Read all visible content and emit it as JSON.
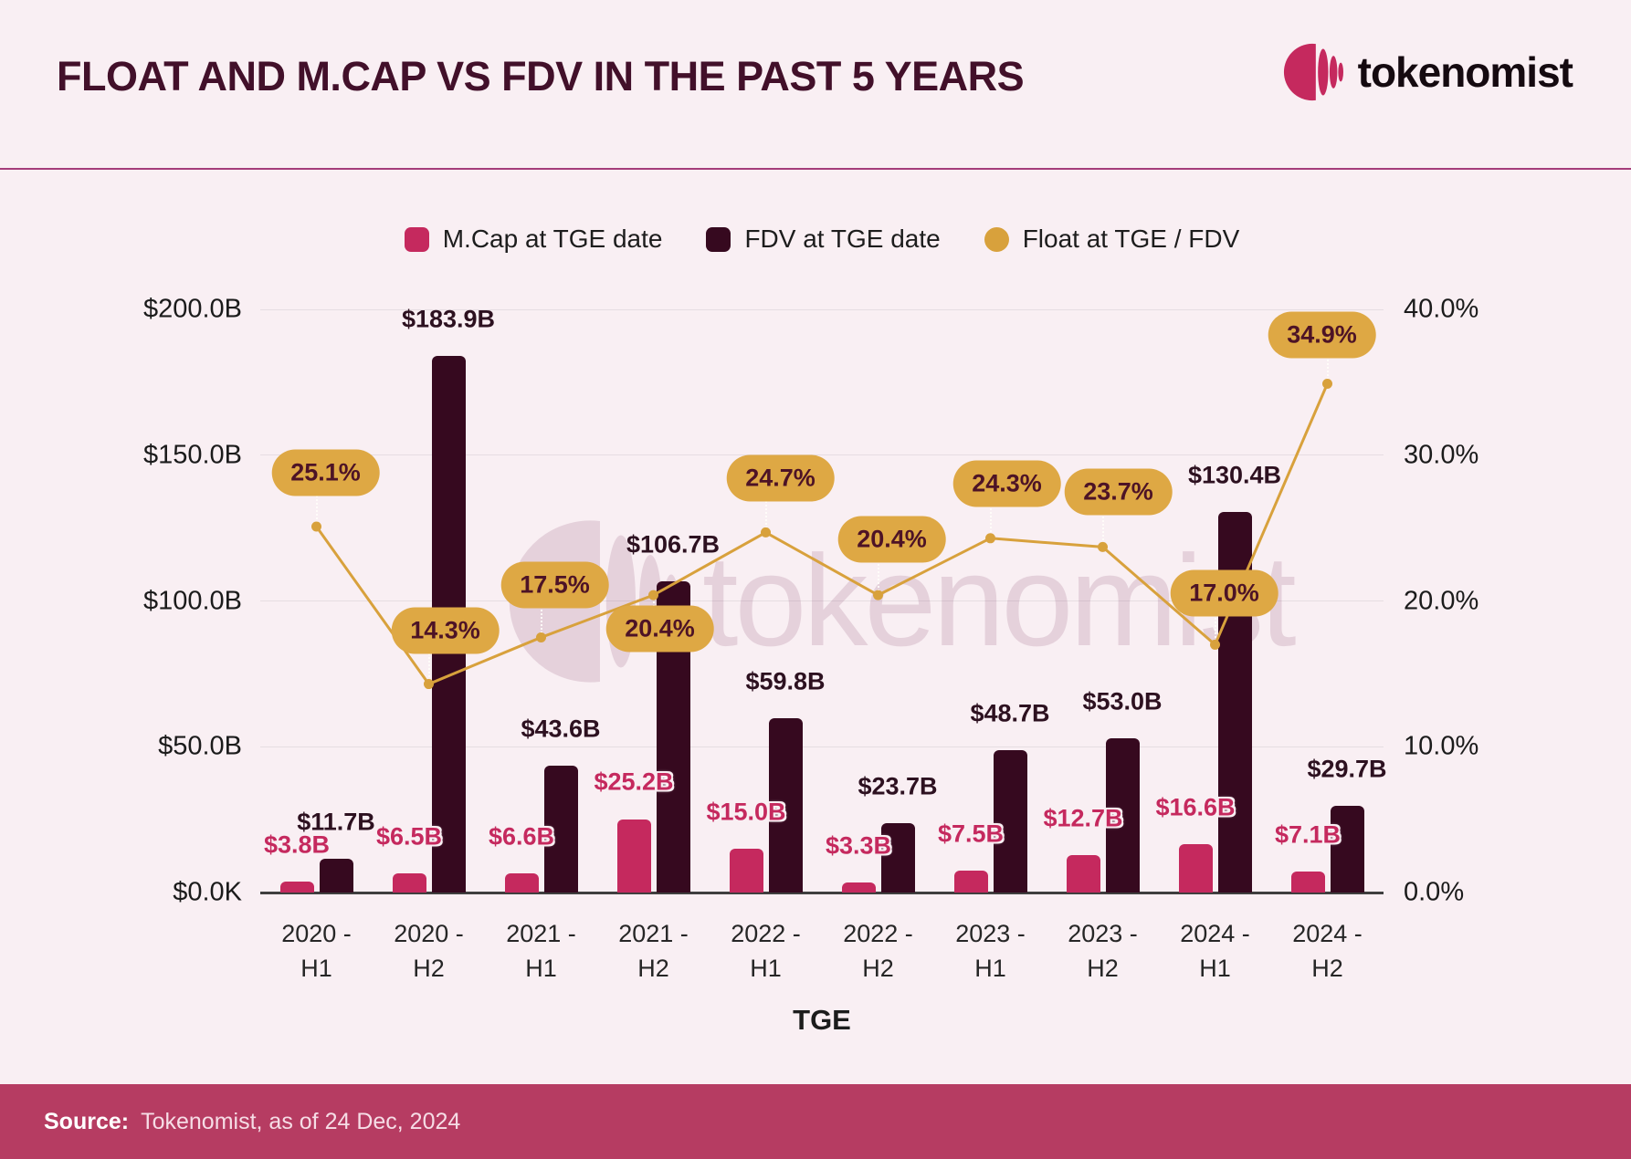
{
  "header": {
    "title": "FLOAT AND M.CAP VS FDV IN THE PAST 5 YEARS",
    "brand": "tokenomist"
  },
  "watermark": {
    "text": "tokenomist"
  },
  "source": {
    "label": "Source:",
    "text": "Tokenomist, as of 24 Dec, 2024"
  },
  "colors": {
    "background": "#f9eff3",
    "title": "#42102a",
    "divider": "#a53c7a",
    "mcap_pink": "#c5295e",
    "fdv_maroon": "#36091f",
    "gold": "#dea844",
    "gold_line": "#d8a13c",
    "pill_text": "#4d1326",
    "grid": "#e6dde2",
    "axis_text": "#1b1b1b",
    "source_band": "#b63c62",
    "watermark": "#8e4d72"
  },
  "chart_data": {
    "type": "bar+line",
    "title": "FLOAT AND M.CAP VS FDV IN THE PAST 5 YEARS",
    "xlabel": "TGE",
    "grid": true,
    "legend_position": "top",
    "categories": [
      {
        "top": "2020 -",
        "bottom": "H1"
      },
      {
        "top": "2020 -",
        "bottom": "H2"
      },
      {
        "top": "2021 -",
        "bottom": "H1"
      },
      {
        "top": "2021 -",
        "bottom": "H2"
      },
      {
        "top": "2022 -",
        "bottom": "H1"
      },
      {
        "top": "2022 -",
        "bottom": "H2"
      },
      {
        "top": "2023 -",
        "bottom": "H1"
      },
      {
        "top": "2023 -",
        "bottom": "H2"
      },
      {
        "top": "2024 -",
        "bottom": "H1"
      },
      {
        "top": "2024 -",
        "bottom": "H2"
      }
    ],
    "series": [
      {
        "name": "M.Cap at TGE date",
        "type": "bar",
        "axis": "left",
        "color": "#c5295e",
        "values": [
          3.8,
          6.5,
          6.6,
          25.2,
          15.0,
          3.3,
          7.5,
          12.7,
          16.6,
          7.1
        ],
        "labels": [
          "$3.8B",
          "$6.5B",
          "$6.6B",
          "$25.2B",
          "$15.0B",
          "$3.3B",
          "$7.5B",
          "$12.7B",
          "$16.6B",
          "$7.1B"
        ]
      },
      {
        "name": "FDV at TGE date",
        "type": "bar",
        "axis": "left",
        "color": "#36091f",
        "values": [
          11.7,
          183.9,
          43.6,
          106.7,
          59.8,
          23.7,
          48.7,
          53.0,
          130.4,
          29.7
        ],
        "labels": [
          "$11.7B",
          "$183.9B",
          "$43.6B",
          "$106.7B",
          "$59.8B",
          "$23.7B",
          "$48.7B",
          "$53.0B",
          "$130.4B",
          "$29.7B"
        ]
      },
      {
        "name": "Float at TGE / FDV",
        "type": "line",
        "axis": "right",
        "color": "#d8a13c",
        "values": [
          25.1,
          14.3,
          17.5,
          20.4,
          24.7,
          20.4,
          24.3,
          23.7,
          17.0,
          34.9
        ],
        "labels": [
          "25.1%",
          "14.3%",
          "17.5%",
          "20.4%",
          "24.7%",
          "20.4%",
          "24.3%",
          "23.7%",
          "17.0%",
          "34.9%"
        ]
      }
    ],
    "left_axis": {
      "unit": "USD",
      "min": 0,
      "max": 200,
      "ticks": [
        "$200.0B",
        "$150.0B",
        "$100.0B",
        "$50.0B",
        "$0.0K"
      ]
    },
    "right_axis": {
      "unit": "percent",
      "min": 0,
      "max": 40,
      "ticks": [
        "40.0%",
        "30.0%",
        "20.0%",
        "10.0%",
        "0.0%"
      ]
    }
  }
}
